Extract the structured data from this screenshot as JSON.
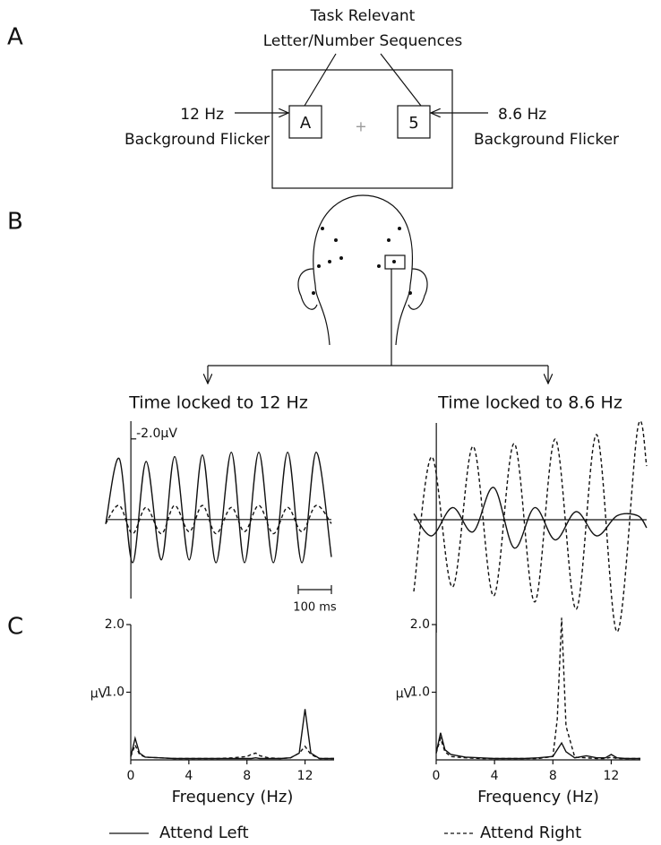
{
  "figure": {
    "panel_labels": [
      "A",
      "B",
      "C"
    ],
    "diagram": {
      "title_lines": [
        "Task Relevant",
        "Letter/Number Sequences"
      ],
      "left_freq": "12 Hz",
      "left_desc": "Background Flicker",
      "right_freq": "8.6 Hz",
      "right_desc": "Background Flicker",
      "left_letter": "A",
      "right_letter": "5",
      "fixation": "+"
    }
  },
  "chart_data": [
    {
      "type": "line",
      "title": "Time locked to 12 Hz",
      "xlim": [
        -76,
        605
      ],
      "ylim": [
        1.96,
        -2.44
      ],
      "yticks": [
        {
          "value": -2.0,
          "label": "-2.0μV"
        }
      ],
      "scale_bar": {
        "value": 100,
        "label": "100 ms"
      },
      "x": [
        -76,
        -35,
        5,
        46,
        92,
        132,
        176,
        216,
        257,
        303,
        343,
        386,
        430,
        473,
        516,
        559,
        605
      ],
      "series": [
        {
          "name": "Attend Left",
          "style": "solid",
          "color": "#111",
          "values": [
            0.11,
            -1.51,
            1.07,
            -1.44,
            1.0,
            -1.56,
            1.0,
            -1.6,
            1.07,
            -1.67,
            1.07,
            -1.67,
            1.07,
            -1.67,
            1.07,
            -1.67,
            0.93
          ]
        },
        {
          "name": "Attend Right",
          "style": "dashed",
          "color": "#111",
          "values": [
            0.1,
            -0.35,
            0.35,
            -0.3,
            0.35,
            -0.35,
            0.3,
            -0.35,
            0.35,
            -0.3,
            0.3,
            -0.35,
            0.35,
            -0.3,
            0.3,
            -0.35,
            0.1
          ]
        }
      ]
    },
    {
      "type": "line",
      "title": "Time locked to 8.6 Hz",
      "xlim": [
        -68,
        635
      ],
      "ylim": [
        2.8,
        -2.4
      ],
      "x": [
        -68,
        -14,
        49,
        111,
        173,
        235,
        297,
        359,
        422,
        484,
        546,
        608,
        635
      ],
      "series": [
        {
          "style": "solid",
          "color": "#111",
          "values": [
            -0.15,
            0.4,
            -0.3,
            0.3,
            -0.8,
            0.7,
            -0.3,
            0.5,
            -0.2,
            0.4,
            -0.1,
            -0.1,
            0.2
          ]
        },
        {
          "style": "dashed",
          "color": "#111",
          "values": [
            1.78,
            -1.56,
            1.67,
            -1.82,
            1.89,
            -1.89,
            2.04,
            -2.0,
            2.22,
            -2.11,
            2.78,
            -2.27,
            -1.33
          ]
        }
      ]
    },
    {
      "type": "spectrum",
      "xlabel": "Frequency (Hz)",
      "ylabel": "μV",
      "xlim": [
        0,
        14
      ],
      "ylim": [
        0,
        2.0
      ],
      "xticks": [
        0,
        4,
        8,
        12
      ],
      "yticks": [
        {
          "value": 1.0,
          "label": "1.0"
        },
        {
          "value": 2.0,
          "label": "2.0"
        }
      ],
      "x": [
        0,
        0.3,
        0.6,
        1,
        2,
        3,
        4,
        5,
        6,
        7,
        8,
        8.3,
        8.6,
        8.9,
        9.5,
        10.3,
        11,
        11.6,
        12,
        12.4,
        13,
        14
      ],
      "series": [
        {
          "style": "solid",
          "color": "#111",
          "values": [
            0.05,
            0.32,
            0.1,
            0.04,
            0.03,
            0.02,
            0.02,
            0.02,
            0.02,
            0.02,
            0.02,
            0.02,
            0.03,
            0.02,
            0.02,
            0.02,
            0.03,
            0.1,
            0.75,
            0.1,
            0.02,
            0.02
          ]
        },
        {
          "style": "dashed",
          "color": "#111",
          "values": [
            0.05,
            0.22,
            0.08,
            0.04,
            0.03,
            0.02,
            0.02,
            0.02,
            0.02,
            0.03,
            0.05,
            0.08,
            0.1,
            0.06,
            0.03,
            0.02,
            0.03,
            0.1,
            0.2,
            0.08,
            0.02,
            0.02
          ]
        }
      ]
    },
    {
      "type": "spectrum",
      "xlabel": "Frequency (Hz)",
      "ylabel": "μV",
      "xlim": [
        0,
        14
      ],
      "ylim": [
        0,
        2.0
      ],
      "xticks": [
        0,
        4,
        8,
        12
      ],
      "yticks": [
        {
          "value": 1.0,
          "label": "1.0"
        },
        {
          "value": 2.0,
          "label": "2.0"
        }
      ],
      "x": [
        0,
        0.3,
        0.6,
        1,
        2,
        3,
        4,
        5,
        6,
        7,
        8,
        8.3,
        8.6,
        8.9,
        9.5,
        10.3,
        11,
        11.6,
        12,
        12.4,
        13,
        14
      ],
      "series": [
        {
          "style": "solid",
          "color": "#111",
          "values": [
            0.1,
            0.4,
            0.15,
            0.08,
            0.04,
            0.03,
            0.02,
            0.02,
            0.02,
            0.03,
            0.05,
            0.15,
            0.25,
            0.12,
            0.03,
            0.06,
            0.03,
            0.03,
            0.08,
            0.03,
            0.02,
            0.02
          ]
        },
        {
          "style": "dashed",
          "color": "#111",
          "values": [
            0.1,
            0.32,
            0.12,
            0.05,
            0.03,
            0.02,
            0.02,
            0.02,
            0.02,
            0.02,
            0.05,
            0.6,
            2.1,
            0.5,
            0.04,
            0.03,
            0.02,
            0.02,
            0.04,
            0.02,
            0.02,
            0.02
          ]
        }
      ]
    }
  ]
}
